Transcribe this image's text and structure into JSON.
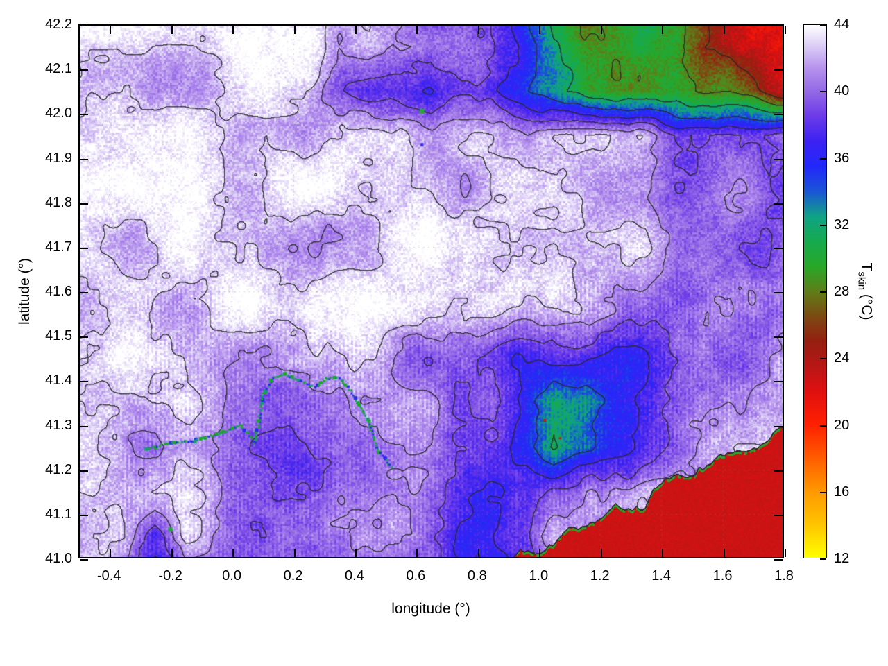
{
  "chart_data": {
    "type": "heatmap",
    "xlabel": "longitude (°)",
    "ylabel": "latitude (°)",
    "x": {
      "min": -0.5,
      "max": 1.8,
      "ticks": [
        -0.4,
        -0.2,
        0.0,
        0.2,
        0.4,
        0.6,
        0.8,
        1.0,
        1.2,
        1.4,
        1.6,
        1.8
      ],
      "tick_labels": [
        "-0.4",
        "-0.2",
        "0.0",
        "0.2",
        "0.4",
        "0.6",
        "0.8",
        "1.0",
        "1.2",
        "1.4",
        "1.6",
        "1.8"
      ]
    },
    "y": {
      "min": 41.0,
      "max": 42.2,
      "ticks": [
        41.0,
        41.1,
        41.2,
        41.3,
        41.4,
        41.5,
        41.6,
        41.7,
        41.8,
        41.9,
        42.0,
        42.1,
        42.2
      ],
      "tick_labels": [
        "41.0",
        "41.1",
        "41.2",
        "41.3",
        "41.4",
        "41.5",
        "41.6",
        "41.7",
        "41.8",
        "41.9",
        "42.0",
        "42.1",
        "42.2"
      ]
    },
    "colorbar": {
      "label_main": "T",
      "label_sub": "skin",
      "label_unit": " (°C)",
      "min": 12,
      "max": 44,
      "ticks": [
        12,
        16,
        20,
        24,
        28,
        32,
        36,
        40,
        44
      ],
      "tick_labels": [
        "12",
        "16",
        "20",
        "24",
        "28",
        "32",
        "36",
        "40",
        "44"
      ],
      "colormap": [
        [
          12,
          "#ffff00"
        ],
        [
          14,
          "#ffc400"
        ],
        [
          16,
          "#ff9800"
        ],
        [
          18,
          "#ff5c00"
        ],
        [
          20,
          "#ff2000"
        ],
        [
          22,
          "#e01010"
        ],
        [
          23.5,
          "#b81616"
        ],
        [
          25,
          "#941f10"
        ],
        [
          26.5,
          "#7c4a12"
        ],
        [
          28,
          "#5f7d18"
        ],
        [
          29.5,
          "#28a828"
        ],
        [
          31,
          "#16aa4e"
        ],
        [
          32.5,
          "#0fa386"
        ],
        [
          34,
          "#1a55d6"
        ],
        [
          35.5,
          "#2228fa"
        ],
        [
          37,
          "#3c22f2"
        ],
        [
          38.5,
          "#6b3ae8"
        ],
        [
          40,
          "#9468e6"
        ],
        [
          41.5,
          "#b896ee"
        ],
        [
          42.8,
          "#ddd0f6"
        ],
        [
          44,
          "#ffffff"
        ]
      ]
    },
    "grid_on": true,
    "contour_levels": [
      25.5,
      28.5,
      31.5,
      34.5,
      37.0,
      39.0,
      41.0,
      42.6
    ],
    "field": {
      "lon_start": -0.45,
      "lon_step": 0.1,
      "lat_start": 42.15,
      "lat_step": -0.1,
      "values": [
        [
          43,
          43,
          43,
          43,
          43,
          43,
          42,
          42,
          39,
          41,
          41,
          40,
          41,
          40,
          38,
          33,
          29,
          29,
          30,
          29,
          25,
          22,
          21
        ],
        [
          43,
          43,
          42,
          43,
          42,
          42,
          42,
          41,
          38,
          37,
          37,
          36,
          37,
          37,
          36,
          32,
          29,
          29,
          30,
          30,
          28,
          27,
          24
        ],
        [
          43,
          43,
          43,
          43,
          43,
          43,
          43,
          42,
          42,
          42,
          42,
          40,
          41,
          42,
          42,
          42,
          42,
          42,
          42,
          41,
          41,
          40,
          39
        ],
        [
          44,
          43,
          43,
          43,
          43,
          43,
          43,
          43,
          43,
          42,
          42,
          42,
          42,
          43,
          43,
          43,
          42,
          42,
          42,
          41,
          41,
          40,
          39
        ],
        [
          43,
          43,
          43,
          43,
          42,
          43,
          43,
          43,
          42,
          42,
          42,
          43,
          43,
          43,
          43,
          43,
          43,
          42,
          42,
          41,
          41,
          40,
          39
        ],
        [
          43,
          43,
          43,
          42,
          42,
          43,
          43,
          43,
          43,
          42,
          42,
          42,
          43,
          43,
          43,
          43,
          42,
          42,
          42,
          41,
          41,
          40,
          39
        ],
        [
          43,
          43,
          41,
          41,
          42,
          43,
          42,
          43,
          43,
          43,
          43,
          43,
          43,
          43,
          42,
          42,
          41,
          41,
          41,
          40,
          41,
          40,
          39
        ],
        [
          43,
          43,
          42,
          42,
          42,
          42,
          41,
          41,
          41,
          42,
          42,
          41,
          41,
          40,
          39,
          39,
          38,
          37,
          37,
          38,
          39,
          40,
          41
        ],
        [
          43,
          43,
          42,
          42,
          41,
          40,
          39,
          40,
          40,
          41,
          41,
          41,
          40,
          40,
          36,
          31,
          31,
          36,
          38,
          39,
          40,
          41,
          42
        ],
        [
          43,
          42,
          40,
          40,
          40,
          40,
          40,
          41,
          41,
          40,
          40,
          40,
          39,
          38,
          34,
          30,
          33,
          37,
          39,
          40,
          42,
          43,
          43
        ],
        [
          43,
          42,
          42,
          42,
          41,
          41,
          41,
          41,
          41,
          40,
          40,
          39,
          38,
          36,
          36,
          38,
          40,
          42,
          43,
          43,
          42,
          42,
          42
        ],
        [
          43,
          42,
          37,
          42,
          41,
          41,
          41,
          41,
          40,
          40,
          40,
          39,
          37,
          37,
          38,
          42,
          42,
          42,
          42,
          41,
          41,
          41,
          41
        ]
      ]
    },
    "coastline": {
      "lon0": 0.92,
      "lat0": 41.0,
      "slope": 0.3182,
      "sea_temp": 22.8,
      "fringe_temp": 29.5
    },
    "river": {
      "points": [
        [
          -0.28,
          41.245
        ],
        [
          -0.2,
          41.26
        ],
        [
          -0.12,
          41.265
        ],
        [
          -0.04,
          41.28
        ],
        [
          0.03,
          41.3
        ],
        [
          0.075,
          41.26
        ],
        [
          0.09,
          41.31
        ],
        [
          0.1,
          41.365
        ],
        [
          0.13,
          41.4
        ],
        [
          0.17,
          41.415
        ],
        [
          0.22,
          41.4
        ],
        [
          0.27,
          41.385
        ],
        [
          0.31,
          41.405
        ],
        [
          0.35,
          41.405
        ],
        [
          0.38,
          41.385
        ],
        [
          0.41,
          41.35
        ],
        [
          0.44,
          41.315
        ],
        [
          0.46,
          41.28
        ],
        [
          0.47,
          41.25
        ],
        [
          0.5,
          41.225
        ],
        [
          0.52,
          41.205
        ]
      ],
      "colors": [
        "#17a82b",
        "#2a2af0",
        "#11a06e"
      ]
    },
    "spots": [
      [
        -0.2,
        41.065,
        6,
        30
      ],
      [
        0.62,
        42.005,
        7,
        30
      ],
      [
        0.62,
        41.93,
        4,
        36
      ],
      [
        1.02,
        41.31,
        4,
        23
      ],
      [
        1.07,
        41.27,
        3,
        23
      ]
    ]
  }
}
